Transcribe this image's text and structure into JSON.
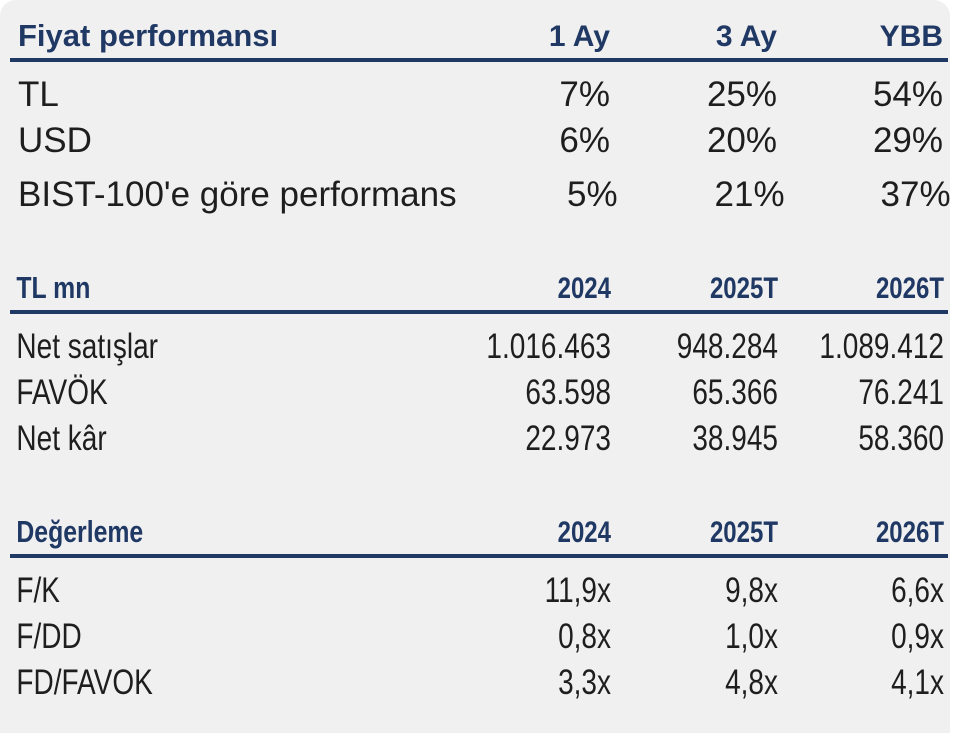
{
  "accent_color": "#203864",
  "text_color": "#1e1e1e",
  "panel_color": "#f0f0f1",
  "sections": [
    {
      "title": "Fiyat performansı",
      "columns": [
        "1 Ay",
        "3 Ay",
        "YBB"
      ],
      "rows": [
        {
          "label": "TL",
          "values": [
            "7%",
            "25%",
            "54%"
          ]
        },
        {
          "label": "USD",
          "values": [
            "6%",
            "20%",
            "29%"
          ]
        },
        {
          "label": "BIST-100'e göre performans",
          "values": [
            "5%",
            "21%",
            "37%"
          ]
        }
      ]
    },
    {
      "title": "TL mn",
      "columns": [
        "2024",
        "2025T",
        "2026T"
      ],
      "rows": [
        {
          "label": "Net satışlar",
          "values": [
            "1.016.463",
            "948.284",
            "1.089.412"
          ]
        },
        {
          "label": "FAVÖK",
          "values": [
            "63.598",
            "65.366",
            "76.241"
          ]
        },
        {
          "label": "Net kâr",
          "values": [
            "22.973",
            "38.945",
            "58.360"
          ]
        }
      ]
    },
    {
      "title": "Değerleme",
      "columns": [
        "2024",
        "2025T",
        "2026T"
      ],
      "rows": [
        {
          "label": "F/K",
          "values": [
            "11,9x",
            "9,8x",
            "6,6x"
          ]
        },
        {
          "label": "F/DD",
          "values": [
            "0,8x",
            "1,0x",
            "0,9x"
          ]
        },
        {
          "label": "FD/FAVOK",
          "values": [
            "3,3x",
            "4,8x",
            "4,1x"
          ]
        }
      ]
    }
  ]
}
